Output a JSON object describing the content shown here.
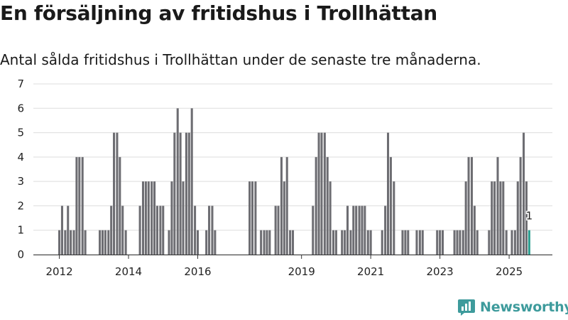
{
  "header": {
    "title": "En försäljning av fritidshus i Trollhättan",
    "subtitle": "Antal sålda fritidshus i Trollhättan under de senaste tre månaderna."
  },
  "brand": {
    "name": "Newsworthy",
    "color": "#3e9b9c"
  },
  "colors": {
    "bar": "#6d6d72",
    "highlight": "#2a9d8f",
    "grid": "#dddddd"
  },
  "chart_data": {
    "type": "bar",
    "x_unit": "year",
    "ylim": [
      0,
      7
    ],
    "yticks": [
      0,
      1,
      2,
      3,
      4,
      5,
      6,
      7
    ],
    "xticks": [
      {
        "value": 2012,
        "label": "2012"
      },
      {
        "value": 2014,
        "label": "2014"
      },
      {
        "value": 2016,
        "label": "2016"
      },
      {
        "value": 2019,
        "label": "2019"
      },
      {
        "value": 2021,
        "label": "2021"
      },
      {
        "value": 2023,
        "label": "2023"
      },
      {
        "value": 2025,
        "label": "2025"
      }
    ],
    "bars": [
      {
        "x": 2012.0,
        "y": 1
      },
      {
        "x": 2012.08,
        "y": 2
      },
      {
        "x": 2012.17,
        "y": 1
      },
      {
        "x": 2012.25,
        "y": 2
      },
      {
        "x": 2012.33,
        "y": 1
      },
      {
        "x": 2012.42,
        "y": 1
      },
      {
        "x": 2012.5,
        "y": 4
      },
      {
        "x": 2012.58,
        "y": 4
      },
      {
        "x": 2012.67,
        "y": 4
      },
      {
        "x": 2012.75,
        "y": 1
      },
      {
        "x": 2013.17,
        "y": 1
      },
      {
        "x": 2013.25,
        "y": 1
      },
      {
        "x": 2013.33,
        "y": 1
      },
      {
        "x": 2013.42,
        "y": 1
      },
      {
        "x": 2013.5,
        "y": 2
      },
      {
        "x": 2013.58,
        "y": 5
      },
      {
        "x": 2013.67,
        "y": 5
      },
      {
        "x": 2013.75,
        "y": 4
      },
      {
        "x": 2013.83,
        "y": 2
      },
      {
        "x": 2013.92,
        "y": 1
      },
      {
        "x": 2014.33,
        "y": 2
      },
      {
        "x": 2014.42,
        "y": 3
      },
      {
        "x": 2014.5,
        "y": 3
      },
      {
        "x": 2014.58,
        "y": 3
      },
      {
        "x": 2014.67,
        "y": 3
      },
      {
        "x": 2014.75,
        "y": 3
      },
      {
        "x": 2014.83,
        "y": 2
      },
      {
        "x": 2014.92,
        "y": 2
      },
      {
        "x": 2015.0,
        "y": 2
      },
      {
        "x": 2015.17,
        "y": 1
      },
      {
        "x": 2015.25,
        "y": 3
      },
      {
        "x": 2015.33,
        "y": 5
      },
      {
        "x": 2015.42,
        "y": 6
      },
      {
        "x": 2015.5,
        "y": 5
      },
      {
        "x": 2015.58,
        "y": 3
      },
      {
        "x": 2015.67,
        "y": 5
      },
      {
        "x": 2015.75,
        "y": 5
      },
      {
        "x": 2015.83,
        "y": 6
      },
      {
        "x": 2015.92,
        "y": 2
      },
      {
        "x": 2016.0,
        "y": 1
      },
      {
        "x": 2016.25,
        "y": 1
      },
      {
        "x": 2016.33,
        "y": 2
      },
      {
        "x": 2016.42,
        "y": 2
      },
      {
        "x": 2016.5,
        "y": 1
      },
      {
        "x": 2017.5,
        "y": 3
      },
      {
        "x": 2017.58,
        "y": 3
      },
      {
        "x": 2017.67,
        "y": 3
      },
      {
        "x": 2017.83,
        "y": 1
      },
      {
        "x": 2017.92,
        "y": 1
      },
      {
        "x": 2018.0,
        "y": 1
      },
      {
        "x": 2018.08,
        "y": 1
      },
      {
        "x": 2018.25,
        "y": 2
      },
      {
        "x": 2018.33,
        "y": 2
      },
      {
        "x": 2018.42,
        "y": 4
      },
      {
        "x": 2018.5,
        "y": 3
      },
      {
        "x": 2018.58,
        "y": 4
      },
      {
        "x": 2018.67,
        "y": 1
      },
      {
        "x": 2018.75,
        "y": 1
      },
      {
        "x": 2019.33,
        "y": 2
      },
      {
        "x": 2019.42,
        "y": 4
      },
      {
        "x": 2019.5,
        "y": 5
      },
      {
        "x": 2019.58,
        "y": 5
      },
      {
        "x": 2019.67,
        "y": 5
      },
      {
        "x": 2019.75,
        "y": 4
      },
      {
        "x": 2019.83,
        "y": 3
      },
      {
        "x": 2019.92,
        "y": 1
      },
      {
        "x": 2020.0,
        "y": 1
      },
      {
        "x": 2020.17,
        "y": 1
      },
      {
        "x": 2020.25,
        "y": 1
      },
      {
        "x": 2020.33,
        "y": 2
      },
      {
        "x": 2020.42,
        "y": 1
      },
      {
        "x": 2020.5,
        "y": 2
      },
      {
        "x": 2020.58,
        "y": 2
      },
      {
        "x": 2020.67,
        "y": 2
      },
      {
        "x": 2020.75,
        "y": 2
      },
      {
        "x": 2020.83,
        "y": 2
      },
      {
        "x": 2020.92,
        "y": 1
      },
      {
        "x": 2021.0,
        "y": 1
      },
      {
        "x": 2021.33,
        "y": 1
      },
      {
        "x": 2021.42,
        "y": 2
      },
      {
        "x": 2021.5,
        "y": 5
      },
      {
        "x": 2021.58,
        "y": 4
      },
      {
        "x": 2021.67,
        "y": 3
      },
      {
        "x": 2021.92,
        "y": 1
      },
      {
        "x": 2022.0,
        "y": 1
      },
      {
        "x": 2022.08,
        "y": 1
      },
      {
        "x": 2022.33,
        "y": 1
      },
      {
        "x": 2022.42,
        "y": 1
      },
      {
        "x": 2022.5,
        "y": 1
      },
      {
        "x": 2022.92,
        "y": 1
      },
      {
        "x": 2023.0,
        "y": 1
      },
      {
        "x": 2023.08,
        "y": 1
      },
      {
        "x": 2023.42,
        "y": 1
      },
      {
        "x": 2023.5,
        "y": 1
      },
      {
        "x": 2023.58,
        "y": 1
      },
      {
        "x": 2023.67,
        "y": 1
      },
      {
        "x": 2023.75,
        "y": 3
      },
      {
        "x": 2023.83,
        "y": 4
      },
      {
        "x": 2023.92,
        "y": 4
      },
      {
        "x": 2024.0,
        "y": 2
      },
      {
        "x": 2024.08,
        "y": 1
      },
      {
        "x": 2024.42,
        "y": 1
      },
      {
        "x": 2024.5,
        "y": 3
      },
      {
        "x": 2024.58,
        "y": 3
      },
      {
        "x": 2024.67,
        "y": 4
      },
      {
        "x": 2024.75,
        "y": 3
      },
      {
        "x": 2024.83,
        "y": 3
      },
      {
        "x": 2024.92,
        "y": 1
      },
      {
        "x": 2025.08,
        "y": 1
      },
      {
        "x": 2025.17,
        "y": 1
      },
      {
        "x": 2025.25,
        "y": 3
      },
      {
        "x": 2025.33,
        "y": 4
      },
      {
        "x": 2025.42,
        "y": 5
      },
      {
        "x": 2025.5,
        "y": 3
      },
      {
        "x": 2025.58,
        "y": 1,
        "highlight": true,
        "label": "1"
      }
    ]
  }
}
